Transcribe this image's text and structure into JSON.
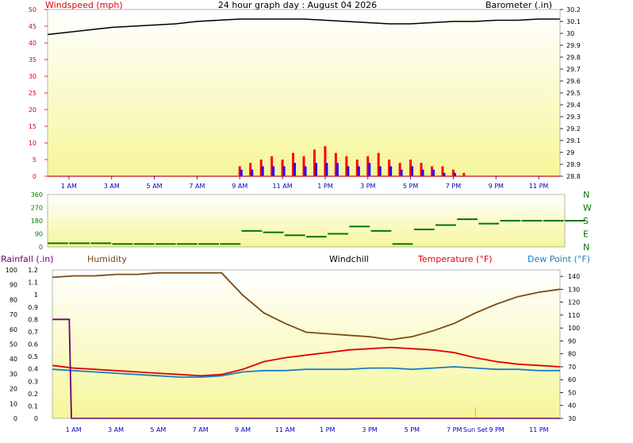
{
  "title": "24 hour graph day : August 04 2026",
  "colors": {
    "wind": "#ff0000",
    "gust": "#2b00ff",
    "baro": "#000000",
    "dir": "#007700",
    "rain": "#6e006e",
    "humidity": "#7a4a12",
    "temp": "#e00000",
    "dew": "#1a7fc4",
    "axis_blue": "#0000c0",
    "panel_top": "#ffffff",
    "panel_bottom": "#f6f69a"
  },
  "time_axis": {
    "labels": [
      "1 AM",
      "3 AM",
      "5 AM",
      "7 AM",
      "9 AM",
      "11 AM",
      "1 PM",
      "3 PM",
      "5 PM",
      "7 PM",
      "9 PM",
      "11 PM"
    ],
    "x_range": [
      0,
      24
    ]
  },
  "panels": {
    "wind": {
      "left_label": "Windspeed (mph)",
      "right_label": "Barometer (.in)",
      "left_ticks": [
        "0",
        "5",
        "10",
        "15",
        "20",
        "25",
        "30",
        "35",
        "40",
        "45",
        "50"
      ],
      "right_ticks": [
        "28.8",
        "28.9",
        "29",
        "29.1",
        "29.2",
        "29.3",
        "29.4",
        "29.5",
        "29.6",
        "29.7",
        "29.8",
        "29.9",
        "30",
        "30.1",
        "30.2"
      ]
    },
    "direction": {
      "left_ticks": [
        "0",
        "90",
        "180",
        "270",
        "360"
      ],
      "compass": [
        "N",
        "W",
        "S",
        "E",
        "N"
      ]
    },
    "thermo": {
      "rain_label": "Rainfall (.in)",
      "humidity_label": "Humidity",
      "windchill_label": "Windchill",
      "temp_label": "Temperature (°F)",
      "dew_label": "Dew Point (°F)",
      "humidity_ticks": [
        "0",
        "10",
        "20",
        "30",
        "40",
        "50",
        "60",
        "70",
        "80",
        "90",
        "100"
      ],
      "rain_ticks": [
        "0",
        "0.1",
        "0.2",
        "0.3",
        "0.4",
        "0.5",
        "0.6",
        "0.7",
        "0.8",
        "0.9",
        "1",
        "1.1",
        "1.2"
      ],
      "temp_ticks": [
        "30",
        "40",
        "50",
        "60",
        "70",
        "80",
        "90",
        "100",
        "110",
        "120",
        "130",
        "140"
      ],
      "time_labels": [
        "1 AM",
        "3 AM",
        "5 AM",
        "7 AM",
        "9 AM",
        "11 AM",
        "1 PM",
        "3 PM",
        "5 PM",
        "7 PM",
        "Sun Set",
        "9 PM",
        "11 PM"
      ],
      "sunset_label": "Sun Set"
    }
  },
  "chart_data": [
    {
      "type": "line",
      "title": "24 hour graph day : August 04 2026",
      "ylabel": "Windspeed (mph)",
      "y2label": "Barometer (.in)",
      "ylim": [
        0,
        50
      ],
      "y2lim": [
        28.8,
        30.2
      ],
      "series": [
        {
          "name": "Barometer (.in)",
          "axis": "right",
          "x": [
            0,
            1,
            2,
            3,
            4,
            5,
            6,
            7,
            8,
            9,
            10,
            11,
            12,
            13,
            14,
            15,
            16,
            17,
            18,
            19,
            20,
            21,
            22,
            23,
            24
          ],
          "y": [
            29.99,
            30.01,
            30.03,
            30.05,
            30.06,
            30.07,
            30.08,
            30.1,
            30.11,
            30.12,
            30.12,
            30.12,
            30.12,
            30.11,
            30.1,
            30.09,
            30.08,
            30.08,
            30.09,
            30.1,
            30.1,
            30.11,
            30.11,
            30.12,
            30.12
          ]
        },
        {
          "name": "Windspeed (mph)",
          "axis": "left",
          "x": [
            9,
            9.5,
            10,
            10.5,
            11,
            11.5,
            12,
            12.5,
            13,
            13.5,
            14,
            14.5,
            15,
            15.5,
            16,
            16.5,
            17,
            17.5,
            18,
            18.5,
            19,
            19.5
          ],
          "y": [
            3,
            4,
            5,
            6,
            5,
            7,
            6,
            8,
            9,
            7,
            6,
            5,
            6,
            7,
            5,
            4,
            5,
            4,
            3,
            3,
            2,
            1
          ]
        },
        {
          "name": "Gust (mph)",
          "axis": "left",
          "x": [
            9,
            9.5,
            10,
            10.5,
            11,
            11.5,
            12,
            12.5,
            13,
            13.5,
            14,
            14.5,
            15,
            15.5,
            16,
            16.5,
            17,
            17.5,
            18,
            18.5,
            19,
            19.5
          ],
          "y": [
            2,
            2,
            3,
            3,
            3,
            4,
            3,
            4,
            4,
            4,
            3,
            3,
            4,
            3,
            3,
            2,
            3,
            2,
            2,
            1,
            1,
            0
          ]
        }
      ]
    },
    {
      "type": "scatter",
      "ylabel": "Wind direction",
      "ylim": [
        0,
        360
      ],
      "series": [
        {
          "name": "Direction",
          "x": [
            0,
            1,
            2,
            3,
            4,
            5,
            6,
            7,
            8,
            9,
            10,
            11,
            12,
            13,
            14,
            15,
            16,
            17,
            18,
            19,
            20,
            21,
            22,
            23,
            24
          ],
          "y": [
            25,
            25,
            25,
            20,
            20,
            20,
            20,
            20,
            20,
            110,
            100,
            80,
            70,
            90,
            140,
            110,
            20,
            120,
            150,
            190,
            160,
            180,
            180,
            180,
            180
          ]
        }
      ]
    },
    {
      "type": "line",
      "series": [
        {
          "name": "Humidity",
          "axis": "left",
          "x": [
            0,
            1,
            2,
            3,
            4,
            5,
            6,
            7,
            8,
            9,
            10,
            11,
            12,
            13,
            14,
            15,
            16,
            17,
            18,
            19,
            20,
            21,
            22,
            23,
            24
          ],
          "y": [
            95,
            96,
            96,
            97,
            97,
            98,
            98,
            98,
            98,
            83,
            71,
            64,
            58,
            57,
            56,
            55,
            53,
            55,
            59,
            64,
            71,
            77,
            82,
            85,
            87
          ]
        },
        {
          "name": "Temperature (°F)",
          "axis": "right",
          "x": [
            0,
            1,
            2,
            3,
            4,
            5,
            6,
            7,
            8,
            9,
            10,
            11,
            12,
            13,
            14,
            15,
            16,
            17,
            18,
            19,
            20,
            21,
            22,
            23,
            24
          ],
          "y": [
            71,
            69,
            68,
            67,
            66,
            65,
            64,
            63,
            64,
            68,
            74,
            77,
            79,
            81,
            83,
            84,
            85,
            84,
            83,
            81,
            77,
            74,
            72,
            71,
            70
          ]
        },
        {
          "name": "Dew Point (°F)",
          "axis": "right",
          "x": [
            0,
            1,
            2,
            3,
            4,
            5,
            6,
            7,
            8,
            9,
            10,
            11,
            12,
            13,
            14,
            15,
            16,
            17,
            18,
            19,
            20,
            21,
            22,
            23,
            24
          ],
          "y": [
            68,
            67,
            66,
            65,
            64,
            63,
            62,
            62,
            63,
            66,
            67,
            67,
            68,
            68,
            68,
            69,
            69,
            68,
            69,
            70,
            69,
            68,
            68,
            67,
            67
          ]
        },
        {
          "name": "Rainfall (.in)",
          "axis": "rain",
          "x": [
            0,
            0.8,
            0.9,
            24
          ],
          "y": [
            0.8,
            0.8,
            0,
            0
          ]
        }
      ]
    }
  ]
}
